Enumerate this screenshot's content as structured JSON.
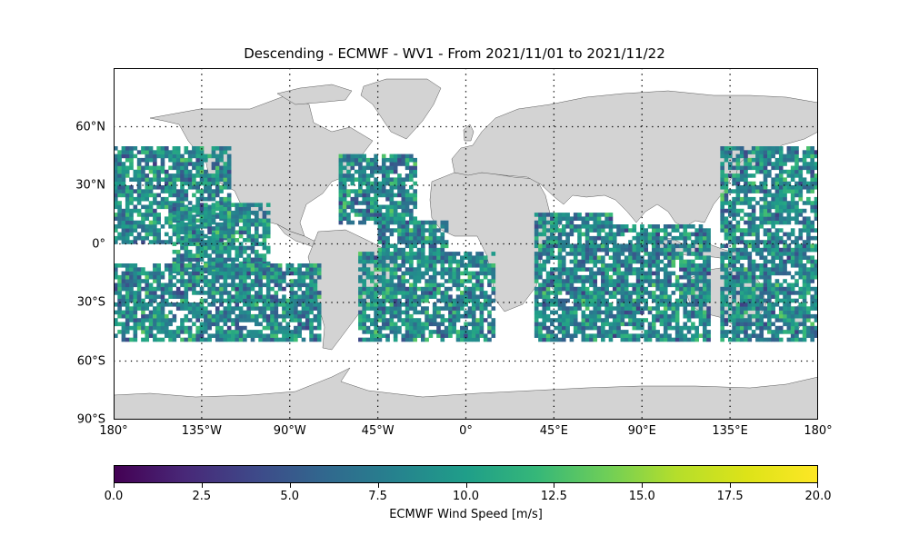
{
  "title": "Descending - ECMWF - WV1 - From 2021/11/01 to 2021/11/22",
  "map": {
    "projection": "equirectangular",
    "lon_range": [
      -180,
      180
    ],
    "lat_range": [
      -90,
      90
    ],
    "land_color": "#d3d3d3",
    "ocean_color": "#ffffff",
    "gridlines": "dotted",
    "lat_labels": [
      "60°N",
      "30°N",
      "0°",
      "30°S",
      "60°S",
      "90°S"
    ],
    "lat_values": [
      60,
      30,
      0,
      -30,
      -60,
      -90
    ],
    "lon_labels": [
      "180°",
      "135°W",
      "90°W",
      "45°W",
      "0°",
      "45°E",
      "90°E",
      "135°E",
      "180°"
    ],
    "lon_values": [
      -180,
      -135,
      -90,
      -45,
      0,
      45,
      90,
      135,
      180
    ],
    "data_lat_range": [
      -50,
      50
    ],
    "swaths": [
      {
        "region": "north-pacific",
        "lon": [
          -180,
          -120
        ],
        "lat": [
          0,
          50
        ]
      },
      {
        "region": "east-pacific",
        "lon": [
          -150,
          -100
        ],
        "lat": [
          -15,
          20
        ]
      },
      {
        "region": "south-pacific",
        "lon": [
          -180,
          -75
        ],
        "lat": [
          -50,
          -10
        ]
      },
      {
        "region": "north-atlantic",
        "lon": [
          -65,
          -25
        ],
        "lat": [
          10,
          45
        ]
      },
      {
        "region": "tropical-atlantic",
        "lon": [
          -45,
          -10
        ],
        "lat": [
          -10,
          12
        ]
      },
      {
        "region": "south-atlantic",
        "lon": [
          -55,
          15
        ],
        "lat": [
          -50,
          -5
        ]
      },
      {
        "region": "south-indian-west",
        "lon": [
          35,
          75
        ],
        "lat": [
          -50,
          15
        ]
      },
      {
        "region": "south-indian-east",
        "lon": [
          75,
          125
        ],
        "lat": [
          -50,
          10
        ]
      },
      {
        "region": "west-pacific",
        "lon": [
          130,
          180
        ],
        "lat": [
          -50,
          50
        ]
      }
    ]
  },
  "colorbar": {
    "label": "ECMWF Wind Speed [m/s]",
    "colormap": "viridis",
    "range": [
      0,
      20
    ],
    "ticks": [
      "0.0",
      "2.5",
      "5.0",
      "7.5",
      "10.0",
      "12.5",
      "15.0",
      "17.5",
      "20.0"
    ],
    "tick_values": [
      0,
      2.5,
      5,
      7.5,
      10,
      12.5,
      15,
      17.5,
      20
    ]
  }
}
